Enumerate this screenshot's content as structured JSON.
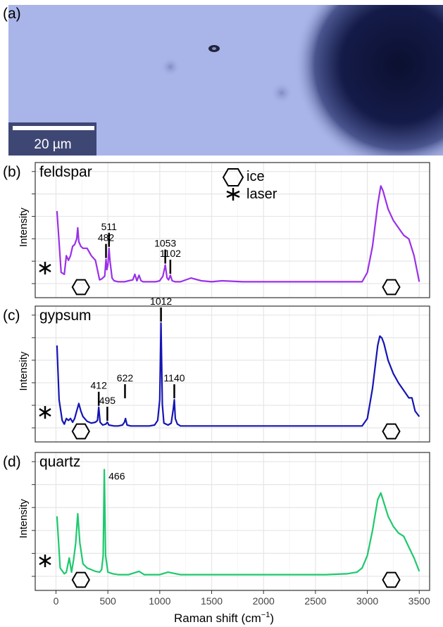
{
  "panel_a": {
    "label": "(a)",
    "scale_bar_label": "20 µm"
  },
  "legend": {
    "ice_label": "ice",
    "laser_label": "laser",
    "ice_icon": "hexagon-icon",
    "laser_icon": "asterisk-icon"
  },
  "colors": {
    "feldspar": "#9b30e8",
    "gypsum": "#1515b4",
    "quartz": "#1ec96e",
    "micro_bg": "#a9b5e8",
    "micro_dark": "#0b1030",
    "scale_bar_bg": "#3e4774"
  },
  "chart_data": [
    {
      "type": "line",
      "panel_label": "(b)",
      "name": "feldspar",
      "ylabel": "Intensity",
      "xlim": [
        -200,
        3600
      ],
      "xticks": [
        0,
        500,
        1000,
        1500,
        2000,
        2500,
        3000,
        3500
      ],
      "grid": true,
      "series": [
        {
          "name": "feldspar",
          "color": "#9b30e8",
          "x": [
            10,
            50,
            80,
            100,
            120,
            140,
            160,
            180,
            200,
            210,
            220,
            240,
            260,
            300,
            340,
            380,
            420,
            440,
            470,
            482,
            490,
            500,
            511,
            520,
            540,
            560,
            600,
            660,
            700,
            740,
            760,
            780,
            800,
            820,
            840,
            900,
            960,
            1000,
            1030,
            1053,
            1070,
            1085,
            1102,
            1120,
            1150,
            1200,
            1300,
            1400,
            1500,
            1600,
            1800,
            2000,
            2200,
            2400,
            2600,
            2800,
            2950,
            3000,
            3050,
            3100,
            3130,
            3150,
            3200,
            3250,
            3300,
            3350,
            3400,
            3450,
            3500
          ],
          "y": [
            0.78,
            0.12,
            0.1,
            0.3,
            0.25,
            0.3,
            0.4,
            0.42,
            0.48,
            0.6,
            0.45,
            0.4,
            0.38,
            0.38,
            0.3,
            0.25,
            0.04,
            0.05,
            0.08,
            0.26,
            0.15,
            0.2,
            0.38,
            0.25,
            0.06,
            0.03,
            0.02,
            0.02,
            0.03,
            0.04,
            0.1,
            0.03,
            0.09,
            0.03,
            0.02,
            0.02,
            0.02,
            0.03,
            0.08,
            0.2,
            0.06,
            0.04,
            0.09,
            0.03,
            0.02,
            0.02,
            0.06,
            0.03,
            0.02,
            0.03,
            0.02,
            0.02,
            0.02,
            0.02,
            0.02,
            0.02,
            0.02,
            0.12,
            0.4,
            0.85,
            1.05,
            1.0,
            0.8,
            0.68,
            0.6,
            0.52,
            0.48,
            0.3,
            0.02
          ]
        }
      ],
      "annotations": [
        {
          "text": "482",
          "x": 482
        },
        {
          "text": "511",
          "x": 511
        },
        {
          "text": "1053",
          "x": 1053
        },
        {
          "text": "1102",
          "x": 1102
        }
      ],
      "markers": {
        "laser": true,
        "ice": [
          240,
          3230
        ]
      }
    },
    {
      "type": "line",
      "panel_label": "(c)",
      "name": "gypsum",
      "ylabel": "Intensity",
      "xlim": [
        -200,
        3600
      ],
      "xticks": [
        0,
        500,
        1000,
        1500,
        2000,
        2500,
        3000,
        3500
      ],
      "grid": true,
      "series": [
        {
          "name": "gypsum",
          "color": "#1515b4",
          "x": [
            10,
            30,
            60,
            80,
            100,
            120,
            140,
            160,
            180,
            200,
            220,
            240,
            260,
            300,
            340,
            380,
            400,
            412,
            425,
            450,
            480,
            495,
            510,
            560,
            600,
            640,
            660,
            670,
            685,
            720,
            800,
            900,
            950,
            980,
            1000,
            1012,
            1025,
            1040,
            1080,
            1110,
            1130,
            1140,
            1150,
            1170,
            1200,
            1300,
            1500,
            1700,
            2000,
            2300,
            2600,
            2800,
            2950,
            3000,
            3050,
            3100,
            3120,
            3140,
            3160,
            3200,
            3250,
            3300,
            3350,
            3400,
            3430,
            3460,
            3480,
            3500
          ],
          "y": [
            0.88,
            0.3,
            0.08,
            0.04,
            0.1,
            0.08,
            0.1,
            0.06,
            0.1,
            0.18,
            0.26,
            0.18,
            0.12,
            0.07,
            0.05,
            0.06,
            0.08,
            0.22,
            0.06,
            0.03,
            0.04,
            0.06,
            0.03,
            0.02,
            0.02,
            0.03,
            0.06,
            0.1,
            0.03,
            0.02,
            0.02,
            0.02,
            0.03,
            0.08,
            0.3,
            1.12,
            0.25,
            0.05,
            0.03,
            0.05,
            0.2,
            0.3,
            0.1,
            0.04,
            0.02,
            0.02,
            0.02,
            0.02,
            0.02,
            0.02,
            0.02,
            0.02,
            0.02,
            0.1,
            0.42,
            0.88,
            0.98,
            0.96,
            0.9,
            0.72,
            0.58,
            0.48,
            0.4,
            0.32,
            0.32,
            0.18,
            0.15,
            0.12
          ]
        }
      ],
      "annotations": [
        {
          "text": "412",
          "x": 412
        },
        {
          "text": "495",
          "x": 495
        },
        {
          "text": "622",
          "x": 665
        },
        {
          "text": "1012",
          "x": 1012
        },
        {
          "text": "1140",
          "x": 1140
        }
      ],
      "markers": {
        "laser": true,
        "ice": [
          240,
          3230
        ]
      }
    },
    {
      "type": "line",
      "panel_label": "(d)",
      "name": "quartz",
      "ylabel": "Intensity",
      "xlabel": "Raman shift (cm",
      "xlabel_sup": "−1",
      "xlabel_end": ")",
      "xlim": [
        -200,
        3600
      ],
      "xticks": [
        0,
        500,
        1000,
        1500,
        2000,
        2500,
        3000,
        3500
      ],
      "grid": true,
      "series": [
        {
          "name": "quartz",
          "color": "#1ec96e",
          "x": [
            10,
            40,
            80,
            100,
            128,
            150,
            170,
            190,
            210,
            230,
            260,
            300,
            340,
            380,
            420,
            440,
            455,
            466,
            478,
            500,
            550,
            600,
            700,
            800,
            850,
            900,
            1000,
            1080,
            1200,
            1400,
            1600,
            1800,
            2000,
            2200,
            2400,
            2600,
            2800,
            2900,
            2950,
            3000,
            3050,
            3100,
            3130,
            3150,
            3200,
            3250,
            3300,
            3350,
            3400,
            3450,
            3500
          ],
          "y": [
            0.72,
            0.1,
            0.03,
            0.05,
            0.22,
            0.05,
            0.2,
            0.4,
            0.75,
            0.4,
            0.15,
            0.1,
            0.08,
            0.06,
            0.05,
            0.08,
            0.25,
            1.28,
            0.25,
            0.05,
            0.03,
            0.02,
            0.02,
            0.06,
            0.02,
            0.02,
            0.02,
            0.05,
            0.02,
            0.02,
            0.02,
            0.02,
            0.02,
            0.02,
            0.02,
            0.02,
            0.03,
            0.05,
            0.1,
            0.25,
            0.55,
            0.92,
            1.0,
            0.92,
            0.72,
            0.6,
            0.52,
            0.48,
            0.35,
            0.22,
            0.06
          ]
        }
      ],
      "annotations": [
        {
          "text": "466",
          "x": 466,
          "no_line": true
        }
      ],
      "markers": {
        "laser": true,
        "ice": [
          240,
          3230
        ]
      }
    }
  ]
}
